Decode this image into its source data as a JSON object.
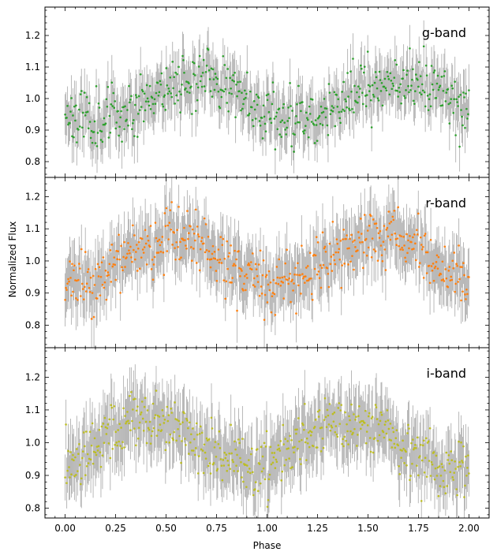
{
  "figure": {
    "xlabel": "Phase",
    "ylabel": "Normalized Flux"
  },
  "chart_data": [
    {
      "type": "scatter",
      "band_label": "g-band",
      "point_color": "#2ca02c",
      "errorbar_color": "#a0a0a0",
      "xlim": [
        -0.1,
        2.1
      ],
      "ylim": [
        0.75,
        1.29
      ],
      "yticks": [
        "0.8",
        "0.9",
        "1.0",
        "1.1",
        "1.2"
      ],
      "phase_shift": 0.1,
      "amplitude": 0.065,
      "offset": 1.0,
      "scatter": 0.045,
      "error": 0.07,
      "n_points": 520,
      "seed": 11
    },
    {
      "type": "scatter",
      "band_label": "r-band",
      "point_color": "#ff7f0e",
      "errorbar_color": "#a0a0a0",
      "xlim": [
        -0.1,
        2.1
      ],
      "ylim": [
        0.73,
        1.26
      ],
      "yticks": [
        "0.8",
        "0.9",
        "1.0",
        "1.1",
        "1.2"
      ],
      "phase_shift": 0.0,
      "amplitude": 0.075,
      "offset": 1.0,
      "scatter": 0.045,
      "error": 0.08,
      "n_points": 520,
      "seed": 23
    },
    {
      "type": "scatter",
      "band_label": "i-band",
      "point_color": "#bcbd22",
      "errorbar_color": "#a0a0a0",
      "xlim": [
        -0.1,
        2.1
      ],
      "ylim": [
        0.77,
        1.29
      ],
      "yticks": [
        "0.8",
        "0.9",
        "1.0",
        "1.1",
        "1.2"
      ],
      "phase_shift": -0.15,
      "amplitude": 0.07,
      "offset": 1.0,
      "scatter": 0.045,
      "error": 0.085,
      "n_points": 520,
      "seed": 37
    }
  ],
  "xticks": [
    "0.00",
    "0.25",
    "0.50",
    "0.75",
    "1.00",
    "1.25",
    "1.50",
    "1.75",
    "2.00"
  ]
}
